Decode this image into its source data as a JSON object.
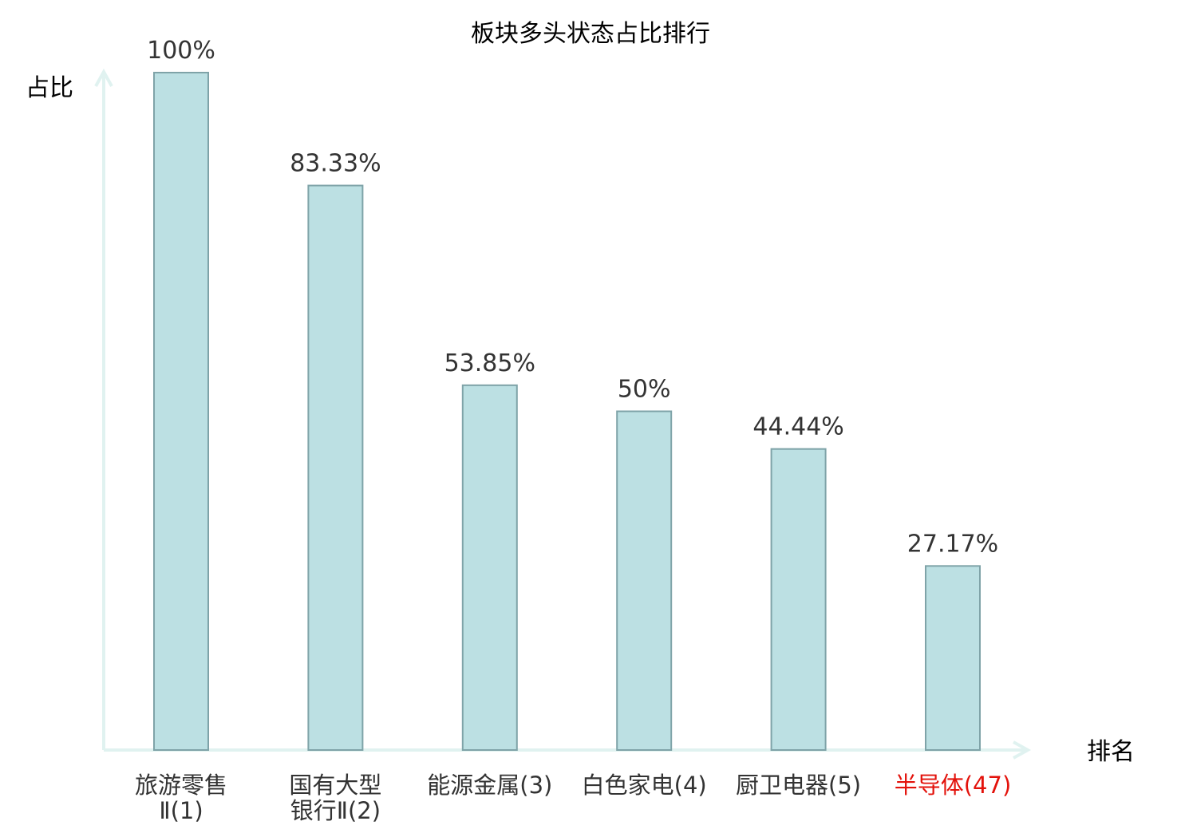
{
  "chart_data": {
    "type": "bar",
    "title": "板块多头状态占比排行",
    "xlabel": "排名",
    "ylabel": "占比",
    "ylim": [
      0,
      100
    ],
    "grid": false,
    "legend": "none",
    "categories": [
      [
        "旅游零售",
        "Ⅱ(1)"
      ],
      [
        "国有大型",
        "银行Ⅱ(2)"
      ],
      [
        "能源金属(3)"
      ],
      [
        "白色家电(4)"
      ],
      [
        "厨卫电器(5)"
      ],
      [
        "半导体(47)"
      ]
    ],
    "values": [
      100,
      83.33,
      53.85,
      50,
      44.44,
      27.17
    ],
    "value_labels": [
      "100%",
      "83.33%",
      "53.85%",
      "50%",
      "44.44%",
      "27.17%"
    ],
    "highlight_index": 5,
    "colors": {
      "bar_fill": "#bce0e3",
      "bar_stroke": "#7fa3a8",
      "axis": "#e0f2f0",
      "text": "#333333",
      "highlight_text": "#e3120b"
    }
  }
}
